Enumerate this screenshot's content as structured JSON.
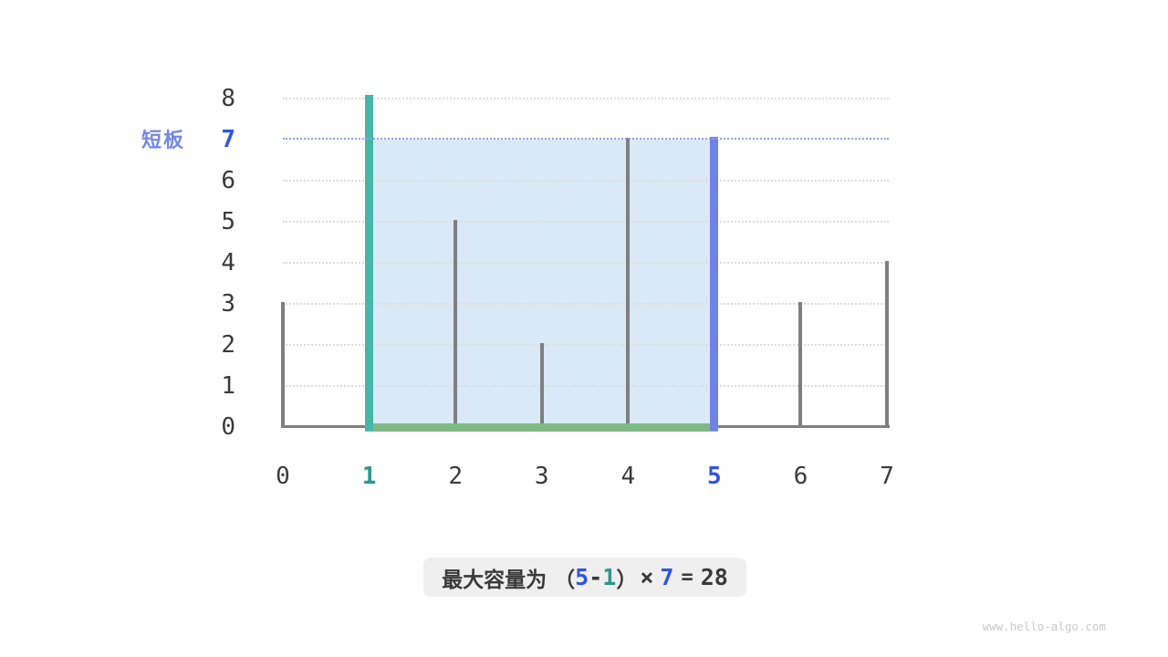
{
  "annotation": {
    "short_board_label": "短板",
    "short_board_value": "7"
  },
  "formula": {
    "prefix": "最大容量为",
    "open_paren": "（",
    "right_index": "5",
    "minus": "-",
    "left_index": "1",
    "close_paren": "）",
    "times": "×",
    "height": "7",
    "equals": "=",
    "result": "28"
  },
  "watermark": "www.hello-algo.com",
  "colors": {
    "bar_gray": "#7F7F7F",
    "bar_teal": "#47B5A8",
    "bar_blue": "#6F82E8",
    "fill_blue": "#D9E9F7",
    "baseline_green": "#7FBA85",
    "water_line": "#8FA0E8",
    "grid": "#DCDCDC",
    "axis": "#7F7F7F",
    "text_dark": "#3A3A3A",
    "num_blue": "#2E55E0",
    "num_teal": "#2F968B",
    "label_blue": "#7488E5",
    "box_bg": "#EFEFEF",
    "watermark": "#C9C9C9"
  },
  "chart_data": {
    "type": "bar",
    "title": "",
    "xlabel": "",
    "ylabel": "",
    "x": [
      0,
      1,
      2,
      3,
      4,
      5,
      6,
      7
    ],
    "heights": [
      3,
      8,
      5,
      2,
      7,
      7,
      3,
      4
    ],
    "xticks": [
      "0",
      "1",
      "2",
      "3",
      "4",
      "5",
      "6",
      "7"
    ],
    "yticks": [
      "0",
      "1",
      "2",
      "3",
      "4",
      "5",
      "6",
      "7",
      "8"
    ],
    "ylim": [
      0,
      8
    ],
    "grid": true,
    "left_pointer": {
      "x": 1,
      "height": 8
    },
    "right_pointer": {
      "x": 5,
      "height": 7
    },
    "water_level": 7,
    "highlight_range": [
      1,
      5
    ],
    "capacity": 28
  }
}
